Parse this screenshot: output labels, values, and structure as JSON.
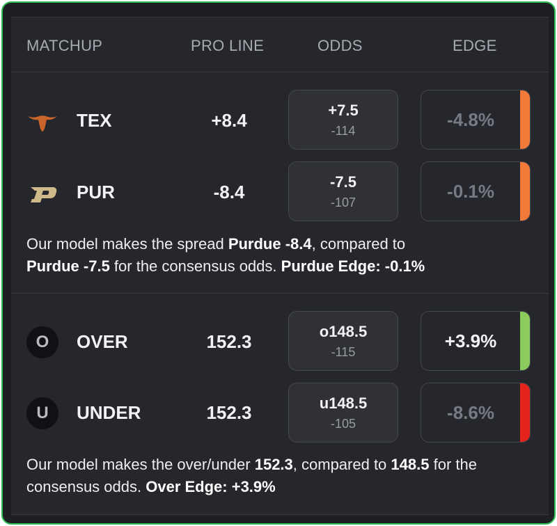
{
  "headers": {
    "matchup": "MATCHUP",
    "pro_line": "PRO LINE",
    "odds": "ODDS",
    "edge": "EDGE"
  },
  "colors": {
    "orange": "#f47a3a",
    "green": "#8ccc5c",
    "red": "#e4241b",
    "texas": "#c9652b",
    "purdue": "#cdb98a"
  },
  "spread": {
    "rows": [
      {
        "team": "TEX",
        "logo": "longhorn-icon",
        "pro_line": "+8.4",
        "odds_line": "+7.5",
        "odds_price": "-114",
        "edge": "-4.8%",
        "edge_color": "#f47a3a"
      },
      {
        "team": "PUR",
        "logo": "purdue-p-icon",
        "pro_line": "-8.4",
        "odds_line": "-7.5",
        "odds_price": "-107",
        "edge": "-0.1%",
        "edge_color": "#f47a3a"
      }
    ],
    "summary": {
      "t1": "Our model makes the spread ",
      "b1": "Purdue -8.4",
      "t2": ", compared to ",
      "b2": "Purdue -7.5",
      "t3": " for the consensus odds. ",
      "b3": "Purdue Edge: -0.1%"
    }
  },
  "total": {
    "rows": [
      {
        "team": "OVER",
        "badge": "O",
        "pro_line": "152.3",
        "odds_line": "o148.5",
        "odds_price": "-115",
        "edge": "+3.9%",
        "edge_color": "#8ccc5c"
      },
      {
        "team": "UNDER",
        "badge": "U",
        "pro_line": "152.3",
        "odds_line": "u148.5",
        "odds_price": "-105",
        "edge": "-8.6%",
        "edge_color": "#e4241b"
      }
    ],
    "summary": {
      "t1": "Our model makes the over/under ",
      "b1": "152.3",
      "t2": ", compared to ",
      "b2": "148.5",
      "t3": " for the consensus odds. ",
      "b3": "Over Edge: +3.9%"
    }
  }
}
